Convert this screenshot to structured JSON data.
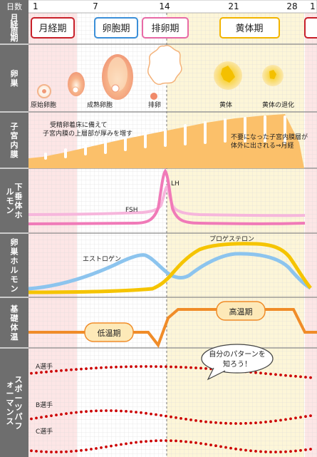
{
  "header": {
    "day_label": "日数",
    "day_ticks": [
      "1",
      "7",
      "14",
      "21",
      "28",
      "1"
    ]
  },
  "rows": {
    "phase": "月経周期",
    "ovary": "卵巣",
    "endometrium": "子宮内膜",
    "pituitary": "下垂体ホルモン",
    "ovarian_hormone": "卵巣ホルモン",
    "bbt": "基礎体温",
    "sports": "スポーツパフォーマンス"
  },
  "phases": [
    {
      "label": "月経期",
      "color": "#c8202a"
    },
    {
      "label": "卵胞期",
      "color": "#3b8fd8"
    },
    {
      "label": "排卵期",
      "color": "#e86aa6"
    },
    {
      "label": "黄体期",
      "color": "#f2b400"
    }
  ],
  "ovary_labels": {
    "primordial": "原始卵胞",
    "mature": "成熟卵胞",
    "ovulation": "排卵",
    "corpus_luteum": "黄体",
    "regression": "黄体の退化"
  },
  "endometrium_text": {
    "left_line1": "受精卵着床に備えて",
    "left_line2": "子宮内膜の上層部が厚みを増す",
    "right_line1": "不要になった子宮内膜層が",
    "right_line2": "体外に出される⇒月経"
  },
  "pituitary_labels": {
    "lh": "LH",
    "fsh": "FSH"
  },
  "ovarian_labels": {
    "estrogen": "エストロゲン",
    "progesterone": "プロゲステロン"
  },
  "bbt_labels": {
    "low": "低温期",
    "high": "高温期"
  },
  "sports_labels": {
    "a": "A選手",
    "b": "B選手",
    "c": "C選手",
    "bubble_line1": "自分のパターンを",
    "bubble_line2": "知ろう！"
  },
  "colors": {
    "sidebar": "#6e6e6e",
    "menstrual_band": "#fde6e6",
    "luteal_band": "#fdf6d8",
    "lh": "#f07ab8",
    "fsh": "#f6b6dc",
    "estrogen": "#8cc4ee",
    "progesterone": "#f5c400",
    "bbt": "#f08c28",
    "endometrium": "#fbc06a",
    "sports_dots": "#cc0000"
  }
}
